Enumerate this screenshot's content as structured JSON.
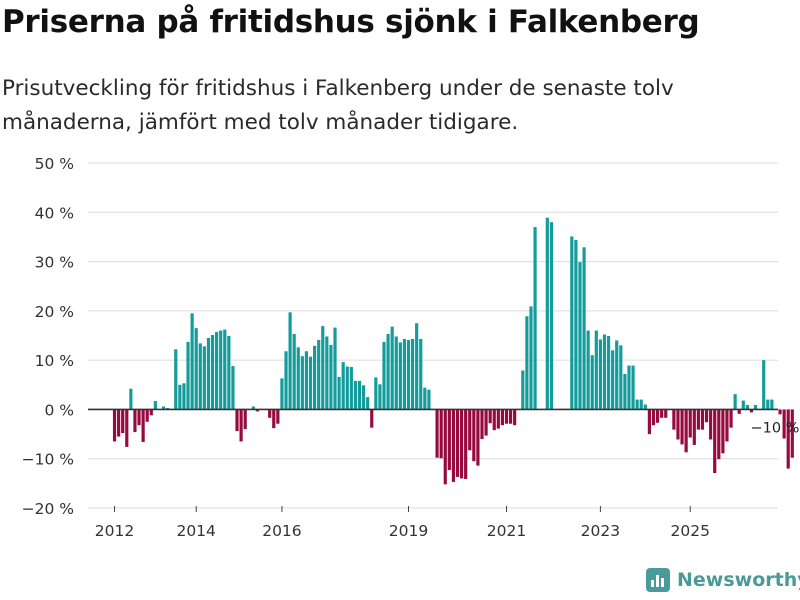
{
  "chart_data": {
    "type": "bar",
    "title": "Priserna på fritidshus sjönk i Falkenberg",
    "subtitle": "Prisutveckling för fritidshus i Falkenberg under de senaste tolv månaderna, jämfört med tolv månader tidigare.",
    "ylim": [
      -20,
      50
    ],
    "yticks": [
      -20,
      -10,
      0,
      10,
      20,
      30,
      40,
      50
    ],
    "ytick_labels": [
      "−20 %",
      "−10 %",
      "0 %",
      "10 %",
      "20 %",
      "30 %",
      "40 %",
      "50 %"
    ],
    "xticks": [
      {
        "label": "2012",
        "index": 0
      },
      {
        "label": "2014",
        "index": 20
      },
      {
        "label": "2016",
        "index": 41
      },
      {
        "label": "2019",
        "index": 72
      },
      {
        "label": "2021",
        "index": 96
      },
      {
        "label": "2023",
        "index": 119
      },
      {
        "label": "2025",
        "index": 141
      }
    ],
    "xlim_index": [
      -6.5,
      162.5
    ],
    "colors": {
      "positive": "#149c9c",
      "negative": "#970a3e",
      "axis": "#333333",
      "grid": "#dcdcdc"
    },
    "values": [
      -6.5,
      -5.5,
      -4.8,
      -7.6,
      4.2,
      -4.6,
      -3.2,
      -6.6,
      -2.5,
      -1.2,
      1.7,
      0,
      0.6,
      0.3,
      0,
      12.2,
      5,
      5.3,
      13.7,
      19.5,
      16.5,
      13.4,
      12.8,
      14.5,
      15.1,
      15.7,
      16,
      16.2,
      14.9,
      8.8,
      -4.4,
      -6.5,
      -4,
      0,
      0.6,
      -0.4,
      0,
      0,
      -1.7,
      -3.8,
      -2.9,
      6.3,
      11.8,
      19.7,
      15.3,
      12.6,
      10.8,
      11.8,
      10.7,
      12.9,
      14.1,
      16.9,
      14.8,
      13.1,
      16.6,
      6.6,
      9.6,
      8.7,
      8.6,
      5.8,
      5.8,
      4.9,
      2.5,
      -3.7,
      6.5,
      5.1,
      13.7,
      15.3,
      16.8,
      14.8,
      13.6,
      14.3,
      14.1,
      14.3,
      17.5,
      14.3,
      4.4,
      4,
      0,
      -9.8,
      -9.9,
      -15.2,
      -12.3,
      -14.7,
      -13.7,
      -14,
      -14.1,
      -8.3,
      -10.5,
      -11.4,
      -6,
      -5.3,
      -2.8,
      -4.2,
      -3.9,
      -3.2,
      -2.9,
      -2.9,
      -3.2,
      0,
      7.9,
      18.9,
      20.9,
      37,
      0,
      0,
      38.9,
      38,
      0,
      0,
      0,
      0,
      35.1,
      34.4,
      29.9,
      32.9,
      16,
      11,
      16,
      14.2,
      15.2,
      14.9,
      12,
      14,
      13,
      7.2,
      8.9,
      8.9,
      2,
      2,
      1,
      -5,
      -3.2,
      -2.7,
      -1.7,
      -1.7,
      0,
      -4.1,
      -6.1,
      -7.1,
      -8.7,
      -5.7,
      -7.2,
      -4.1,
      -4.1,
      -2.6,
      -6.1,
      -12.9,
      -10.1,
      -8.9,
      -6.5,
      -3.7,
      3.1,
      -0.9,
      1.8,
      0.9,
      -0.6,
      0.9,
      0,
      10,
      2,
      2,
      0,
      -1,
      -5.9,
      -12,
      -9.8
    ],
    "annotations": [
      {
        "text": "−10 %",
        "index": 162
      }
    ]
  },
  "brand": {
    "name": "Newsworthy"
  }
}
